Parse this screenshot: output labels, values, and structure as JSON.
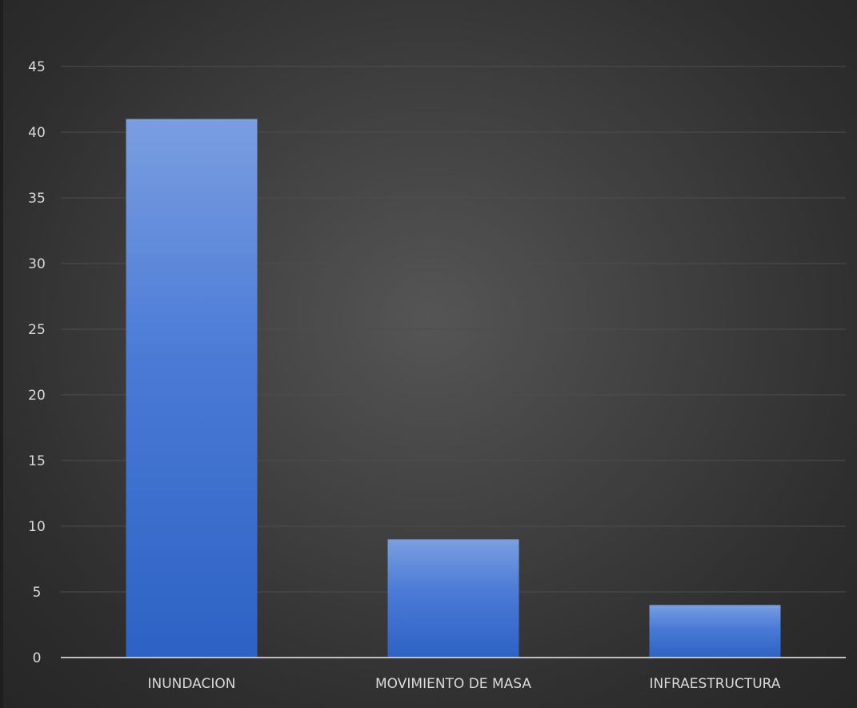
{
  "chart_data": {
    "type": "bar",
    "categories": [
      "INUNDACION",
      "MOVIMIENTO DE MASA",
      "INFRAESTRUCTURA"
    ],
    "values": [
      41,
      9,
      4
    ],
    "ylim": [
      0,
      45
    ],
    "yticks": [
      0,
      5,
      10,
      15,
      20,
      25,
      30,
      35,
      40,
      45
    ],
    "grid": true,
    "legend": "none",
    "colors": {
      "bar_top": "#7a9ee0",
      "bar_bottom": "#2d62c4",
      "background": "#3a3a3a",
      "gridline": "#4d4d4d",
      "axis": "#bfbfbf",
      "text": "#d9d9d9"
    }
  }
}
